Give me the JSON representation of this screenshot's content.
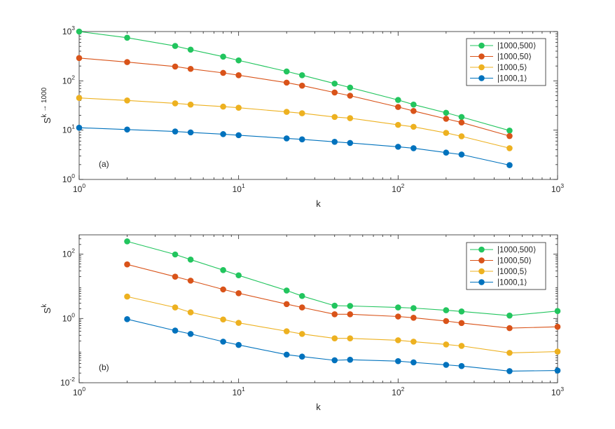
{
  "chart_data": [
    {
      "id": "panel-a",
      "type": "line",
      "x_scale": "log",
      "y_scale": "log",
      "xlim": [
        1,
        1000
      ],
      "ylim": [
        1,
        1000
      ],
      "x_ticks": [
        1,
        10,
        100,
        1000
      ],
      "y_ticks": [
        1,
        10,
        100,
        1000
      ],
      "x_tick_labels": [
        {
          "base": "10",
          "exp": "0"
        },
        {
          "base": "10",
          "exp": "1"
        },
        {
          "base": "10",
          "exp": "2"
        },
        {
          "base": "10",
          "exp": "3"
        }
      ],
      "y_tick_labels": [
        {
          "base": "10",
          "exp": "0"
        },
        {
          "base": "10",
          "exp": "1"
        },
        {
          "base": "10",
          "exp": "2"
        },
        {
          "base": "10",
          "exp": "3"
        }
      ],
      "xlabel": "k",
      "ylabel": {
        "base": "S",
        "sup": "k → 1000"
      },
      "annotation": "(a)",
      "legend_position": "top-right",
      "series": [
        {
          "name": "|1000,500⟩",
          "color": "#22c55e",
          "x": [
            1,
            2,
            4,
            5,
            8,
            10,
            20,
            25,
            40,
            50,
            100,
            125,
            200,
            250,
            500
          ],
          "y": [
            1000,
            750,
            510,
            430,
            310,
            260,
            155,
            130,
            88,
            73,
            41,
            33,
            22.5,
            18.5,
            9.8
          ]
        },
        {
          "name": "|1000,50⟩",
          "color": "#d95319",
          "x": [
            1,
            2,
            4,
            5,
            8,
            10,
            20,
            25,
            40,
            50,
            100,
            125,
            200,
            250,
            500
          ],
          "y": [
            290,
            240,
            195,
            175,
            145,
            130,
            92,
            80,
            58,
            50,
            29.5,
            24.5,
            17,
            14.3,
            7.6
          ]
        },
        {
          "name": "|1000,5⟩",
          "color": "#edb120",
          "x": [
            1,
            2,
            4,
            5,
            8,
            10,
            20,
            25,
            40,
            50,
            100,
            125,
            200,
            250,
            500
          ],
          "y": [
            45,
            40,
            35,
            33,
            30,
            28.5,
            23.5,
            22,
            18.5,
            17.5,
            12.8,
            11.7,
            8.8,
            7.5,
            4.3
          ]
        },
        {
          "name": "|1000,1⟩",
          "color": "#0072bd",
          "x": [
            1,
            2,
            4,
            5,
            8,
            10,
            20,
            25,
            40,
            50,
            100,
            125,
            200,
            250,
            500
          ],
          "y": [
            11.2,
            10.3,
            9.4,
            9.0,
            8.3,
            7.9,
            6.8,
            6.5,
            5.8,
            5.5,
            4.6,
            4.3,
            3.5,
            3.2,
            1.95
          ]
        }
      ]
    },
    {
      "id": "panel-b",
      "type": "line",
      "x_scale": "log",
      "y_scale": "log",
      "xlim": [
        1,
        1000
      ],
      "ylim": [
        0.01,
        400
      ],
      "x_ticks": [
        1,
        10,
        100,
        1000
      ],
      "y_ticks": [
        0.01,
        1,
        100
      ],
      "x_tick_labels": [
        {
          "base": "10",
          "exp": "0"
        },
        {
          "base": "10",
          "exp": "1"
        },
        {
          "base": "10",
          "exp": "2"
        },
        {
          "base": "10",
          "exp": "3"
        }
      ],
      "y_tick_labels": [
        {
          "base": "10",
          "exp": "-2"
        },
        {
          "base": "10",
          "exp": "0"
        },
        {
          "base": "10",
          "exp": "2"
        }
      ],
      "xlabel": "k",
      "ylabel": {
        "base": "S",
        "sup": "k"
      },
      "annotation": "(b)",
      "legend_position": "top-right",
      "series": [
        {
          "name": "|1000,500⟩",
          "color": "#22c55e",
          "x": [
            2,
            4,
            5,
            8,
            10,
            20,
            25,
            40,
            50,
            100,
            125,
            200,
            250,
            500,
            1000
          ],
          "y": [
            250,
            98,
            68,
            32,
            22,
            7.4,
            5.0,
            2.5,
            2.45,
            2.2,
            2.1,
            1.8,
            1.65,
            1.23,
            1.7
          ]
        },
        {
          "name": "|1000,50⟩",
          "color": "#d95319",
          "x": [
            2,
            4,
            5,
            8,
            10,
            20,
            25,
            40,
            50,
            100,
            125,
            200,
            250,
            500,
            1000
          ],
          "y": [
            48,
            20,
            15,
            8.0,
            6.1,
            2.8,
            2.2,
            1.35,
            1.35,
            1.15,
            1.05,
            0.83,
            0.72,
            0.5,
            0.55
          ]
        },
        {
          "name": "|1000,5⟩",
          "color": "#edb120",
          "x": [
            2,
            4,
            5,
            8,
            10,
            20,
            25,
            40,
            50,
            100,
            125,
            200,
            250,
            500,
            1000
          ],
          "y": [
            4.8,
            2.2,
            1.55,
            0.93,
            0.73,
            0.4,
            0.33,
            0.24,
            0.24,
            0.21,
            0.19,
            0.155,
            0.14,
            0.085,
            0.093
          ]
        },
        {
          "name": "|1000,1⟩",
          "color": "#0072bd",
          "x": [
            2,
            4,
            5,
            8,
            10,
            20,
            25,
            40,
            50,
            100,
            125,
            200,
            250,
            500,
            1000
          ],
          "y": [
            0.95,
            0.42,
            0.33,
            0.19,
            0.15,
            0.075,
            0.065,
            0.05,
            0.052,
            0.047,
            0.043,
            0.036,
            0.033,
            0.023,
            0.024
          ]
        }
      ]
    }
  ]
}
